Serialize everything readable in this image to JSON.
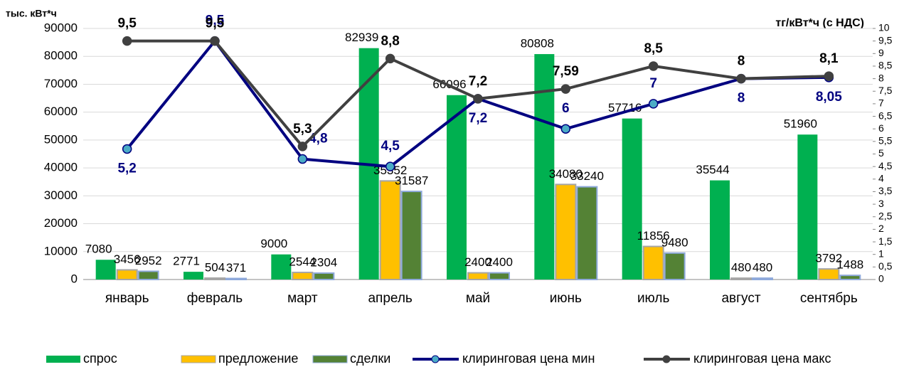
{
  "chart_data": {
    "type": "bar",
    "y_label": "тыс. кВт*ч",
    "y2_label": "тг/кВт*ч (с НДС)",
    "categories": [
      "январь",
      "февраль",
      "март",
      "апрель",
      "май",
      "июнь",
      "июль",
      "август",
      "сентябрь"
    ],
    "ylim": [
      0,
      90000
    ],
    "yticks": [
      0,
      10000,
      20000,
      30000,
      40000,
      50000,
      60000,
      70000,
      80000,
      90000
    ],
    "y2lim": [
      0,
      10
    ],
    "y2ticks": [
      0,
      {
        "value": 0.5,
        "label": "0,5"
      },
      1,
      {
        "value": 1.5,
        "label": "1,5"
      },
      2,
      {
        "value": 2.5,
        "label": "2,5"
      },
      3,
      {
        "value": 3.5,
        "label": "3,5"
      },
      4,
      {
        "value": 4.5,
        "label": "4,5"
      },
      5,
      {
        "value": 5.5,
        "label": "5,5"
      },
      6,
      {
        "value": 6.5,
        "label": "6,5"
      },
      7,
      {
        "value": 7.5,
        "label": "7,5"
      },
      8,
      {
        "value": 8.5,
        "label": "8,5"
      },
      9,
      {
        "value": 9.5,
        "label": "9,5"
      },
      10
    ],
    "grid": true,
    "series": [
      {
        "name": "спрос",
        "type": "bar",
        "color": "#00b050",
        "values": [
          7080,
          2771,
          9000,
          82939,
          66096,
          80808,
          57716,
          35544,
          51960
        ]
      },
      {
        "name": "предложение",
        "type": "bar",
        "color": "#ffc000",
        "outline": "#a6a6a6",
        "values": [
          3456,
          504,
          2544,
          35352,
          2400,
          34080,
          11856,
          480,
          3792
        ]
      },
      {
        "name": "сделки",
        "type": "bar",
        "color": "#548235",
        "outline": "#8ea9db",
        "values": [
          2952,
          371,
          2304,
          31587,
          2400,
          33240,
          9480,
          480,
          1488
        ]
      },
      {
        "name": "клиринговая цена мин",
        "type": "line",
        "axis": "y2",
        "color": "#000080",
        "marker_color": "#4bacc6",
        "values": [
          5.2,
          9.5,
          4.8,
          4.5,
          7.2,
          6,
          7,
          8,
          8.05
        ],
        "value_labels": [
          "5,2",
          "9,5",
          "4,8",
          "4,5",
          "7,2",
          "6",
          "7",
          "8",
          "8,05"
        ]
      },
      {
        "name": "клиринговая цена макс",
        "type": "line",
        "axis": "y2",
        "color": "#404040",
        "marker_color": "#404040",
        "values": [
          9.5,
          9.5,
          5.3,
          8.8,
          7.2,
          7.59,
          8.5,
          8,
          8.1
        ],
        "value_labels": [
          "9,5",
          "9,5",
          "5,3",
          "8,8",
          "7,2",
          "7,59",
          "8,5",
          "8",
          "8,1"
        ]
      }
    ],
    "legend": "bottom"
  }
}
